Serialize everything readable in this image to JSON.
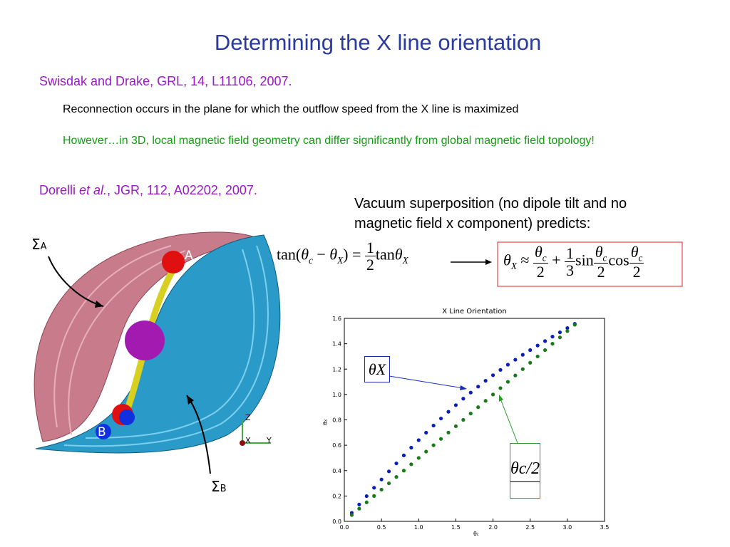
{
  "slide": {
    "title": "Determining the X line orientation",
    "ref1": "Swisdak and Drake, GRL, 14, L11106, 2007.",
    "point1": "Reconnection occurs in the plane for which the outflow speed from the X line is maximized",
    "point2": "However…in 3D, local magnetic field geometry can differ significantly from global magnetic field topology!",
    "ref2": {
      "before": "Dorelli ",
      "italic": "et al.",
      "after": ", JGR, 112, A02202, 2007."
    },
    "vacuum": "Vacuum superposition (no dipole tilt and no magnetic field x component) predicts:",
    "eq1": {
      "tan": "tan(",
      "theta": "θ",
      "c": "c",
      "minus": " − ",
      "X": "X",
      "close": ") =",
      "one": "1",
      "two": "2",
      "tan2": "tan"
    },
    "eq2": {
      "theta": "θ",
      "X": "X",
      "approx": "≈",
      "c": "c",
      "two": "2",
      "plus": "+",
      "one": "1",
      "three": "3",
      "sin": "sin",
      "cos": "cos"
    },
    "figure": {
      "sigmaA": "Σ",
      "subA": "A",
      "sigmaB": "Σ",
      "subB": "B",
      "labelA": "A",
      "labelB": "B",
      "axZ": "Z",
      "axX": "X",
      "axY": "Y"
    }
  },
  "chart_data": {
    "type": "scatter",
    "title": "X Line Orientation",
    "xlabel": {
      "main": "θ",
      "sub": "c"
    },
    "ylabel": {
      "main": "θ",
      "sub": "X"
    },
    "x": [
      0.1,
      0.2,
      0.3,
      0.4,
      0.5,
      0.6,
      0.7,
      0.8,
      0.9,
      1.0,
      1.1,
      1.2,
      1.3,
      1.4,
      1.5,
      1.6,
      1.7,
      1.8,
      1.9,
      2.0,
      2.1,
      2.2,
      2.3,
      2.4,
      2.5,
      2.6,
      2.7,
      2.8,
      2.9,
      3.0,
      3.1
    ],
    "series": [
      {
        "name": "θX",
        "color": "#0a1fb8",
        "values": [
          0.067,
          0.133,
          0.199,
          0.265,
          0.33,
          0.394,
          0.457,
          0.52,
          0.581,
          0.64,
          0.699,
          0.755,
          0.811,
          0.864,
          0.916,
          0.967,
          1.015,
          1.062,
          1.108,
          1.152,
          1.194,
          1.235,
          1.274,
          1.313,
          1.35,
          1.386,
          1.421,
          1.456,
          1.49,
          1.524,
          1.557
        ]
      },
      {
        "name": "θc/2",
        "color": "#1a7a1a",
        "values": [
          0.05,
          0.1,
          0.15,
          0.2,
          0.25,
          0.3,
          0.35,
          0.4,
          0.45,
          0.5,
          0.55,
          0.6,
          0.65,
          0.7,
          0.75,
          0.8,
          0.85,
          0.9,
          0.95,
          1.0,
          1.05,
          1.1,
          1.15,
          1.2,
          1.25,
          1.3,
          1.35,
          1.4,
          1.45,
          1.5,
          1.55
        ]
      }
    ],
    "xlim": [
      0,
      3.5
    ],
    "ylim": [
      0,
      1.6
    ],
    "xticks": [
      {
        "value": 0,
        "label": "0.0"
      },
      0.5,
      {
        "value": 1,
        "label": "1.0"
      },
      1.5,
      {
        "value": 2,
        "label": "2.0"
      },
      2.5,
      {
        "value": 3,
        "label": "3.0"
      },
      3.5
    ],
    "yticks": [
      {
        "value": 0,
        "label": "0.0"
      },
      0.2,
      0.4,
      0.6,
      0.8,
      {
        "value": 1,
        "label": "1.0"
      },
      1.2,
      1.4,
      1.6
    ]
  }
}
